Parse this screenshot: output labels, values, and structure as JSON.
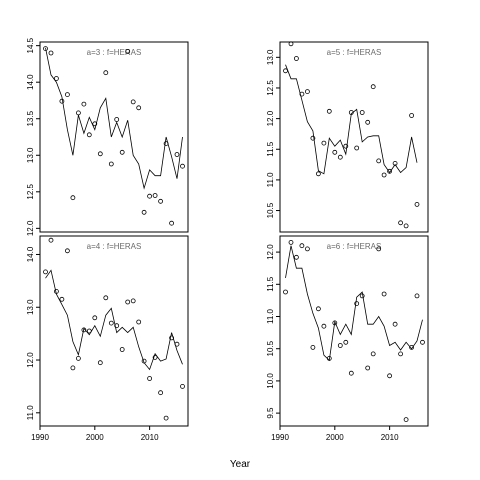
{
  "chart_data": {
    "type": "scatter",
    "xlabel": "Year",
    "panels": [
      {
        "title": "a=3 : f=HERAS",
        "xlim": [
          1990,
          2017
        ],
        "ylim": [
          11.95,
          14.55
        ],
        "xticks": [
          1990,
          2000,
          2010
        ],
        "yticks": [
          12.0,
          12.5,
          13.0,
          13.5,
          14.0,
          14.5
        ],
        "yticklabels": [
          "12.0",
          "12.5",
          "13.0",
          "13.5",
          "14.0",
          "14.5"
        ],
        "points": [
          [
            1991,
            14.46
          ],
          [
            1992,
            14.4
          ],
          [
            1993,
            14.05
          ],
          [
            1994,
            13.74
          ],
          [
            1995,
            13.83
          ],
          [
            1996,
            12.42
          ],
          [
            1997,
            13.58
          ],
          [
            1998,
            13.7
          ],
          [
            1999,
            13.28
          ],
          [
            2000,
            13.43
          ],
          [
            2001,
            13.02
          ],
          [
            2002,
            14.13
          ],
          [
            2003,
            12.88
          ],
          [
            2004,
            13.49
          ],
          [
            2005,
            13.04
          ],
          [
            2006,
            14.42
          ],
          [
            2007,
            13.73
          ],
          [
            2008,
            13.65
          ],
          [
            2009,
            12.22
          ],
          [
            2010,
            12.44
          ],
          [
            2011,
            12.45
          ],
          [
            2012,
            12.37
          ],
          [
            2013,
            13.16
          ],
          [
            2014,
            12.07
          ],
          [
            2015,
            13.01
          ],
          [
            2016,
            12.85
          ]
        ],
        "line": [
          [
            1991,
            14.47
          ],
          [
            1992,
            14.1
          ],
          [
            1993,
            14.0
          ],
          [
            1994,
            13.8
          ],
          [
            1995,
            13.35
          ],
          [
            1996,
            13.0
          ],
          [
            1997,
            13.55
          ],
          [
            1998,
            13.3
          ],
          [
            1999,
            13.52
          ],
          [
            2000,
            13.35
          ],
          [
            2001,
            13.65
          ],
          [
            2002,
            13.78
          ],
          [
            2003,
            13.25
          ],
          [
            2004,
            13.45
          ],
          [
            2005,
            13.25
          ],
          [
            2006,
            13.48
          ],
          [
            2007,
            13.0
          ],
          [
            2008,
            12.88
          ],
          [
            2009,
            12.55
          ],
          [
            2010,
            12.8
          ],
          [
            2011,
            12.72
          ],
          [
            2012,
            12.72
          ],
          [
            2013,
            13.25
          ],
          [
            2014,
            12.98
          ],
          [
            2015,
            12.68
          ],
          [
            2016,
            13.25
          ]
        ]
      },
      {
        "title": "a=5 : f=HERAS",
        "xlim": [
          1990,
          2017
        ],
        "ylim": [
          10.15,
          13.25
        ],
        "xticks": [
          1990,
          2000,
          2010
        ],
        "yticks": [
          10.5,
          11.0,
          11.5,
          12.0,
          12.5,
          13.0
        ],
        "yticklabels": [
          "10.5",
          "11.0",
          "11.5",
          "12.0",
          "12.5",
          "13.0"
        ],
        "points": [
          [
            1991,
            12.78
          ],
          [
            1992,
            13.22
          ],
          [
            1993,
            12.98
          ],
          [
            1994,
            12.4
          ],
          [
            1995,
            12.44
          ],
          [
            1996,
            11.68
          ],
          [
            1997,
            11.1
          ],
          [
            1998,
            11.6
          ],
          [
            1999,
            12.12
          ],
          [
            2000,
            11.45
          ],
          [
            2001,
            11.37
          ],
          [
            2002,
            11.55
          ],
          [
            2003,
            12.1
          ],
          [
            2004,
            11.52
          ],
          [
            2005,
            12.1
          ],
          [
            2006,
            11.94
          ],
          [
            2007,
            12.52
          ],
          [
            2008,
            11.31
          ],
          [
            2009,
            11.08
          ],
          [
            2010,
            11.14
          ],
          [
            2011,
            11.27
          ],
          [
            2012,
            10.3
          ],
          [
            2013,
            10.25
          ],
          [
            2014,
            12.05
          ],
          [
            2015,
            10.6
          ]
        ],
        "line": [
          [
            1991,
            12.88
          ],
          [
            1992,
            12.65
          ],
          [
            1993,
            12.65
          ],
          [
            1994,
            12.3
          ],
          [
            1995,
            11.95
          ],
          [
            1996,
            11.8
          ],
          [
            1997,
            11.15
          ],
          [
            1998,
            11.1
          ],
          [
            1999,
            11.68
          ],
          [
            2000,
            11.55
          ],
          [
            2001,
            11.65
          ],
          [
            2002,
            11.42
          ],
          [
            2003,
            12.08
          ],
          [
            2004,
            12.15
          ],
          [
            2005,
            11.62
          ],
          [
            2006,
            11.7
          ],
          [
            2007,
            11.72
          ],
          [
            2008,
            11.72
          ],
          [
            2009,
            11.25
          ],
          [
            2010,
            11.12
          ],
          [
            2011,
            11.25
          ],
          [
            2012,
            11.12
          ],
          [
            2013,
            11.2
          ],
          [
            2014,
            11.7
          ],
          [
            2015,
            11.28
          ]
        ]
      },
      {
        "title": "a=4 : f=HERAS",
        "xlim": [
          1990,
          2017
        ],
        "ylim": [
          10.75,
          14.35
        ],
        "xticks": [
          1990,
          2000,
          2010
        ],
        "yticks": [
          11.0,
          12.0,
          13.0,
          14.0
        ],
        "yticklabels": [
          "11.0",
          "12.0",
          "13.0",
          "14.0"
        ],
        "points": [
          [
            1991,
            13.67
          ],
          [
            1992,
            14.27
          ],
          [
            1993,
            13.3
          ],
          [
            1994,
            13.15
          ],
          [
            1995,
            14.07
          ],
          [
            1996,
            11.85
          ],
          [
            1997,
            12.03
          ],
          [
            1998,
            12.57
          ],
          [
            1999,
            12.55
          ],
          [
            2000,
            12.8
          ],
          [
            2001,
            11.95
          ],
          [
            2002,
            13.18
          ],
          [
            2003,
            12.7
          ],
          [
            2004,
            12.65
          ],
          [
            2005,
            12.2
          ],
          [
            2006,
            13.1
          ],
          [
            2007,
            13.12
          ],
          [
            2008,
            12.72
          ],
          [
            2009,
            11.98
          ],
          [
            2010,
            11.65
          ],
          [
            2011,
            12.05
          ],
          [
            2012,
            11.38
          ],
          [
            2013,
            10.9
          ],
          [
            2014,
            12.42
          ],
          [
            2015,
            12.3
          ],
          [
            2016,
            11.5
          ]
        ],
        "line": [
          [
            1991,
            13.55
          ],
          [
            1992,
            13.7
          ],
          [
            1993,
            13.25
          ],
          [
            1994,
            13.05
          ],
          [
            1995,
            12.85
          ],
          [
            1996,
            12.35
          ],
          [
            1997,
            12.1
          ],
          [
            1998,
            12.6
          ],
          [
            1999,
            12.48
          ],
          [
            2000,
            12.65
          ],
          [
            2001,
            12.45
          ],
          [
            2002,
            12.85
          ],
          [
            2003,
            12.98
          ],
          [
            2004,
            12.52
          ],
          [
            2005,
            12.62
          ],
          [
            2006,
            12.52
          ],
          [
            2007,
            12.62
          ],
          [
            2008,
            12.25
          ],
          [
            2009,
            11.95
          ],
          [
            2010,
            11.82
          ],
          [
            2011,
            12.12
          ],
          [
            2012,
            11.98
          ],
          [
            2013,
            12.02
          ],
          [
            2014,
            12.52
          ],
          [
            2015,
            12.18
          ],
          [
            2016,
            11.92
          ]
        ]
      },
      {
        "title": "a=6 : f=HERAS",
        "xlim": [
          1990,
          2017
        ],
        "ylim": [
          9.3,
          12.25
        ],
        "xticks": [
          1990,
          2000,
          2010
        ],
        "yticks": [
          9.5,
          10.0,
          10.5,
          11.0,
          11.5,
          12.0
        ],
        "yticklabels": [
          "9.5",
          "10.0",
          "10.5",
          "11.0",
          "11.5",
          "12.0"
        ],
        "points": [
          [
            1991,
            11.38
          ],
          [
            1992,
            12.15
          ],
          [
            1993,
            11.92
          ],
          [
            1994,
            12.1
          ],
          [
            1995,
            12.05
          ],
          [
            1996,
            10.52
          ],
          [
            1997,
            11.12
          ],
          [
            1998,
            10.85
          ],
          [
            1999,
            10.35
          ],
          [
            2000,
            10.9
          ],
          [
            2001,
            10.55
          ],
          [
            2002,
            10.6
          ],
          [
            2003,
            10.12
          ],
          [
            2004,
            11.2
          ],
          [
            2005,
            11.32
          ],
          [
            2006,
            10.2
          ],
          [
            2007,
            10.42
          ],
          [
            2008,
            12.05
          ],
          [
            2009,
            11.35
          ],
          [
            2010,
            10.08
          ],
          [
            2011,
            10.88
          ],
          [
            2012,
            10.42
          ],
          [
            2013,
            9.4
          ],
          [
            2014,
            10.52
          ],
          [
            2015,
            11.32
          ],
          [
            2016,
            10.6
          ]
        ],
        "line": [
          [
            1991,
            11.6
          ],
          [
            1992,
            12.1
          ],
          [
            1993,
            11.75
          ],
          [
            1994,
            11.75
          ],
          [
            1995,
            11.35
          ],
          [
            1996,
            11.05
          ],
          [
            1997,
            10.82
          ],
          [
            1998,
            10.4
          ],
          [
            1999,
            10.32
          ],
          [
            2000,
            10.92
          ],
          [
            2001,
            10.72
          ],
          [
            2002,
            10.88
          ],
          [
            2003,
            10.72
          ],
          [
            2004,
            11.3
          ],
          [
            2005,
            11.38
          ],
          [
            2006,
            10.88
          ],
          [
            2007,
            10.88
          ],
          [
            2008,
            11.0
          ],
          [
            2009,
            10.85
          ],
          [
            2010,
            10.55
          ],
          [
            2011,
            10.6
          ],
          [
            2012,
            10.48
          ],
          [
            2013,
            10.6
          ],
          [
            2014,
            10.5
          ],
          [
            2015,
            10.62
          ],
          [
            2016,
            10.95
          ]
        ]
      }
    ]
  }
}
